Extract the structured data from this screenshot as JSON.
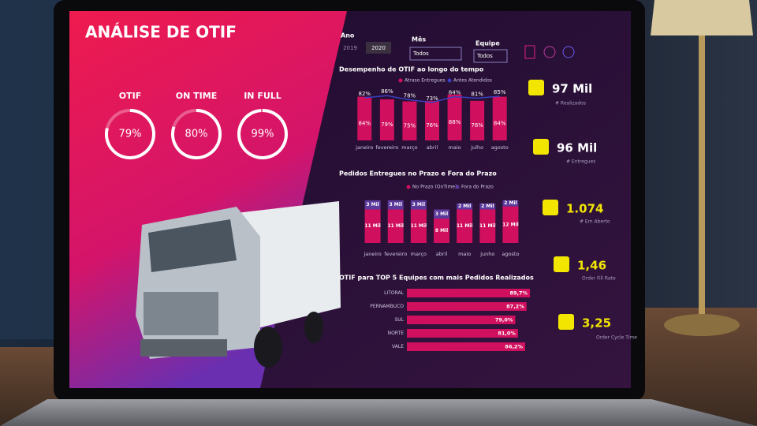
{
  "header": {
    "title": "ANÁLISE DE OTIF"
  },
  "filters": {
    "year": {
      "label": "Ano",
      "options": [
        "2019",
        "2020"
      ],
      "selected": 1
    },
    "month": {
      "label": "Mês",
      "value": "Todos"
    },
    "team": {
      "label": "Equipe",
      "value": "Todos"
    }
  },
  "gauges": [
    {
      "label": "OTIF",
      "value": 79,
      "value_label": "79%"
    },
    {
      "label": "ON TIME",
      "value": 80,
      "value_label": "80%"
    },
    {
      "label": "IN FULL",
      "value": 99,
      "value_label": "99%"
    }
  ],
  "chart_data": [
    {
      "type": "bar_line",
      "title": "Desempenho de OTIF ao longo do tempo",
      "categories": [
        "janeiro",
        "fevereiro",
        "março",
        "abril",
        "maio",
        "julho",
        "agosto"
      ],
      "series": [
        {
          "name": "Atraso Entregues",
          "color": "#d0105e",
          "values": [
            84,
            79,
            75,
            76,
            88,
            76,
            84
          ],
          "value_labels": [
            "84%",
            "79%",
            "75%",
            "76%",
            "88%",
            "76%",
            "84%"
          ]
        },
        {
          "name": "Antes Atendidos",
          "color": "#3a3fc0",
          "values": [
            82,
            86,
            78,
            73,
            84,
            81,
            85
          ],
          "value_labels": [
            "82%",
            "86%",
            "78%",
            "73%",
            "84%",
            "81%",
            "85%"
          ]
        }
      ],
      "ylim": [
        0,
        100
      ]
    },
    {
      "type": "stacked_bar",
      "title": "Pedidos Entregues no Prazo e Fora do Prazo",
      "categories": [
        "janeiro",
        "fevereiro",
        "março",
        "abril",
        "maio",
        "junho",
        "agosto"
      ],
      "series": [
        {
          "name": "No Prazo (OnTime)",
          "color": "#d0105e",
          "values": [
            11000,
            11000,
            11000,
            8000,
            11000,
            11000,
            12000
          ],
          "value_labels": [
            "11 Mil",
            "11 Mil",
            "11 Mil",
            "8 Mil",
            "11 Mil",
            "11 Mil",
            "12 Mil"
          ]
        },
        {
          "name": "Fora do Prazo",
          "color": "#5b3a9c",
          "values": [
            3000,
            3000,
            3000,
            3000,
            2000,
            2000,
            2000
          ],
          "value_labels": [
            "3 Mil",
            "3 Mil",
            "3 Mil",
            "3 Mil",
            "2 Mil",
            "2 Mil",
            "2 Mil"
          ]
        }
      ],
      "ylim": [
        0,
        15000
      ]
    },
    {
      "type": "hbar",
      "title": "OTIF para TOP 5 Equipes com mais Pedidos Realizados",
      "categories": [
        "LITORAL",
        "PERNAMBUCO",
        "SUL",
        "NORTE",
        "VALE"
      ],
      "values": [
        89.7,
        87.2,
        79.0,
        81.0,
        86.2
      ],
      "value_labels": [
        "89,7%",
        "87,2%",
        "79,0%",
        "81,0%",
        "86,2%"
      ],
      "color": "#d0105e",
      "xlim": [
        0,
        100
      ]
    }
  ],
  "stats": [
    {
      "value": "97 Mil",
      "label": "# Realizados",
      "color": "#ffffff"
    },
    {
      "value": "96 Mil",
      "label": "# Entregues",
      "color": "#ffffff"
    },
    {
      "value": "1.074",
      "label": "# Em Aberto",
      "color": "#f2e600"
    },
    {
      "value": "1,46",
      "label": "Order Fill Rate",
      "color": "#f2e600"
    },
    {
      "value": "3,25",
      "label": "Order Cycle Time",
      "color": "#f2e600"
    }
  ]
}
